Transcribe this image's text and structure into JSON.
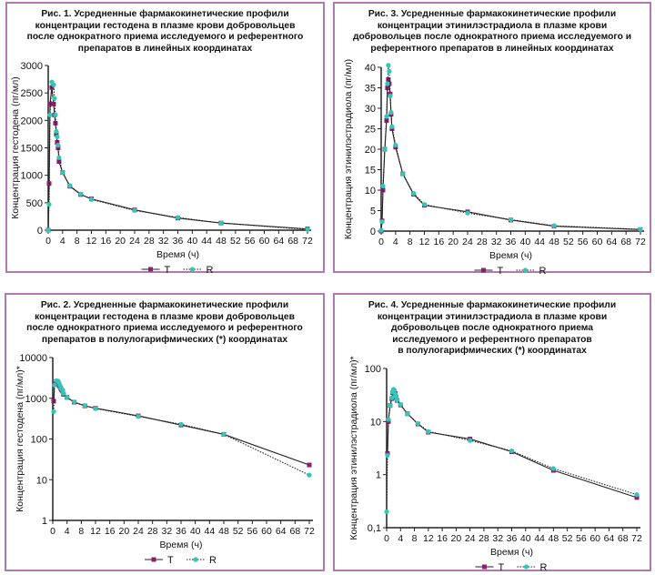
{
  "colors": {
    "T": "#8a1f72",
    "R": "#2fc7b5",
    "border": "#b07ab0"
  },
  "chart_data": [
    {
      "id": "fig1",
      "type": "line",
      "title_lines": [
        "Рис. 1. Усредненные фармакокинетические профили",
        "концентрации гестодена в плазме крови добровольцев",
        "после однократного приема исследуемого и референтного",
        "препаратов в линейных координатах"
      ],
      "xlabel": "Время (ч)",
      "ylabel": "Концентрация гестодена (пг/мл)",
      "yscale": "linear",
      "xlim": [
        0,
        72
      ],
      "ylim": [
        0,
        3000
      ],
      "xticks": [
        0,
        4,
        8,
        12,
        16,
        20,
        24,
        28,
        32,
        36,
        40,
        44,
        48,
        52,
        56,
        60,
        64,
        68,
        72
      ],
      "yticks": [
        0,
        500,
        1000,
        1500,
        2000,
        2500,
        3000
      ],
      "ytick_labels": [
        "0",
        "500",
        "1000",
        "1500",
        "2000",
        "2500",
        "3000"
      ],
      "legend": "bottom",
      "x": [
        0,
        0.25,
        0.5,
        1,
        1.5,
        1.75,
        2,
        2.25,
        2.5,
        2.75,
        3,
        4,
        6,
        9,
        12,
        24,
        36,
        48,
        72
      ],
      "series": [
        {
          "name": "T",
          "style": "solid",
          "marker": "square",
          "values": [
            0,
            850,
            2300,
            2600,
            2300,
            2100,
            1950,
            1750,
            1600,
            1500,
            1250,
            1050,
            800,
            650,
            570,
            370,
            220,
            130,
            23
          ]
        },
        {
          "name": "R",
          "style": "dotted",
          "marker": "circle",
          "values": [
            0,
            470,
            2100,
            2700,
            2650,
            2400,
            2100,
            1800,
            1700,
            1550,
            1320,
            1050,
            810,
            660,
            560,
            360,
            230,
            130,
            13
          ]
        }
      ]
    },
    {
      "id": "fig3",
      "type": "line",
      "title_lines": [
        "Рис. 3. Усредненные фармакокинетические профили",
        "концентрации этинилэстрадиола в плазме крови",
        "добровольцев после однократного приема исследуемого и",
        "референтного препаратов в линейных координатах"
      ],
      "xlabel": "Время (ч)",
      "ylabel": "Концентрация этинилэстрадиола (пг/мл)",
      "yscale": "linear",
      "xlim": [
        0,
        72
      ],
      "ylim": [
        0,
        40
      ],
      "xticks": [
        0,
        4,
        8,
        12,
        16,
        20,
        24,
        28,
        32,
        36,
        40,
        44,
        48,
        52,
        56,
        60,
        64,
        68,
        72
      ],
      "yticks": [
        0,
        5,
        10,
        15,
        20,
        25,
        30,
        35,
        40
      ],
      "ytick_labels": [
        "0",
        "5",
        "10",
        "15",
        "20",
        "25",
        "30",
        "35",
        "40"
      ],
      "legend": "bottom",
      "x": [
        0,
        0.25,
        0.5,
        1,
        1.5,
        1.75,
        2,
        2.25,
        2.5,
        2.75,
        3,
        4,
        6,
        9,
        12,
        24,
        36,
        48,
        72
      ],
      "series": [
        {
          "name": "T",
          "style": "solid",
          "marker": "square",
          "values": [
            0,
            2.5,
            10,
            20,
            27,
            35,
            37,
            36,
            33.5,
            28.5,
            25,
            20.5,
            14,
            9,
            6.3,
            4.7,
            2.7,
            1.2,
            0.37
          ]
        },
        {
          "name": "R",
          "style": "dotted",
          "marker": "circle",
          "values": [
            0.2,
            2.3,
            11,
            20,
            28,
            36,
            40.5,
            39,
            33,
            29,
            25.5,
            21,
            14,
            9.2,
            6.5,
            4.4,
            2.8,
            1.3,
            0.42
          ]
        }
      ]
    },
    {
      "id": "fig2",
      "type": "line",
      "title_lines": [
        "Рис. 2. Усредненные фармакокинетические профили",
        "концентрации гестодена в плазме крови добровольцев",
        "после однократного приема исследуемого и референтного",
        "препаратов в полулогарифмических (*) координатах"
      ],
      "xlabel": "Время (ч)",
      "ylabel": "Концентрация гестодена (пг/мл)*",
      "yscale": "log",
      "xlim": [
        0,
        72
      ],
      "ylim": [
        1,
        10000
      ],
      "xticks": [
        0,
        4,
        8,
        12,
        16,
        20,
        24,
        28,
        32,
        36,
        40,
        44,
        48,
        52,
        56,
        60,
        64,
        68,
        72
      ],
      "yticks": [
        1,
        10,
        100,
        1000,
        10000
      ],
      "ytick_labels": [
        "1",
        "10",
        "100",
        "1000",
        "10000"
      ],
      "legend": "bottom",
      "x": [
        0,
        0.25,
        0.5,
        1,
        1.5,
        1.75,
        2,
        2.25,
        2.5,
        2.75,
        3,
        4,
        6,
        9,
        12,
        24,
        36,
        48,
        72
      ],
      "series": [
        {
          "name": "T",
          "style": "solid",
          "marker": "square",
          "values": [
            0,
            850,
            2300,
            2600,
            2300,
            2100,
            1950,
            1750,
            1600,
            1500,
            1250,
            1050,
            800,
            650,
            570,
            370,
            220,
            130,
            23
          ]
        },
        {
          "name": "R",
          "style": "dotted",
          "marker": "circle",
          "values": [
            0,
            470,
            2100,
            2700,
            2650,
            2400,
            2100,
            1800,
            1700,
            1550,
            1320,
            1050,
            810,
            660,
            560,
            360,
            230,
            130,
            13
          ]
        }
      ]
    },
    {
      "id": "fig4",
      "type": "line",
      "title_lines": [
        "Рис. 4. Усредненные фармакокинетические профили",
        "концентрации этинилэстрадиола в плазме крови",
        "добровольцев после однократного приема",
        "исследуемого и референтного препаратов",
        "в полулогарифмических (*) координатах"
      ],
      "xlabel": "Время (ч)",
      "ylabel": "Концентрация этинилэстрадиола (пг/мл)*",
      "yscale": "log",
      "xlim": [
        0,
        72
      ],
      "ylim": [
        0.1,
        100
      ],
      "xticks": [
        0,
        4,
        8,
        12,
        16,
        20,
        24,
        28,
        32,
        36,
        40,
        44,
        48,
        52,
        56,
        60,
        64,
        68,
        72
      ],
      "yticks": [
        0.1,
        1,
        10,
        100
      ],
      "ytick_labels": [
        "0,1",
        "1",
        "10",
        "100"
      ],
      "legend": "bottom",
      "x": [
        0,
        0.25,
        0.5,
        1,
        1.5,
        1.75,
        2,
        2.25,
        2.5,
        2.75,
        3,
        4,
        6,
        9,
        12,
        24,
        36,
        48,
        72
      ],
      "series": [
        {
          "name": "T",
          "style": "solid",
          "marker": "square",
          "values": [
            0,
            2.5,
            10,
            20,
            27,
            35,
            37,
            36,
            33.5,
            28.5,
            25,
            20.5,
            14,
            9,
            6.3,
            4.7,
            2.7,
            1.2,
            0.37
          ]
        },
        {
          "name": "R",
          "style": "dotted",
          "marker": "circle",
          "values": [
            0.2,
            2.3,
            11,
            20,
            28,
            36,
            40.5,
            39,
            33,
            29,
            25.5,
            21,
            14,
            9.2,
            6.5,
            4.4,
            2.8,
            1.3,
            0.42
          ]
        }
      ]
    }
  ]
}
